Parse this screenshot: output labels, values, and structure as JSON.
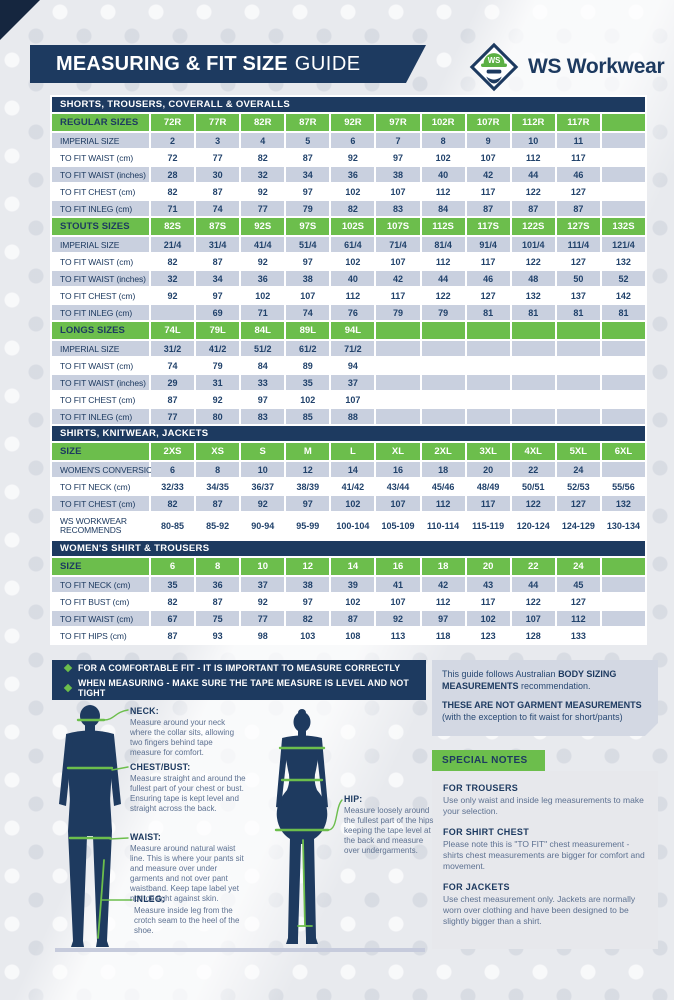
{
  "header": {
    "title_strong": "MEASURING & FIT SIZE",
    "title_light": "GUIDE",
    "brand": "WS Workwear",
    "logo_monogram": "WS"
  },
  "colors": {
    "navy": "#1d3a60",
    "green": "#6cbe4c",
    "row_shade": "#c9d0df",
    "info_bg": "#d3d8e3",
    "notes_bg": "#e7e8ec"
  },
  "size_tables": [
    {
      "section": "SHORTS, TROUSERS, COVERALL & OVERALLS",
      "blocks": [
        {
          "head": {
            "label": "REGULAR SIZES",
            "cols": [
              "72R",
              "77R",
              "82R",
              "87R",
              "92R",
              "97R",
              "102R",
              "107R",
              "112R",
              "117R",
              ""
            ]
          },
          "rows": [
            {
              "label": "IMPERIAL SIZE",
              "values": [
                "2",
                "3",
                "4",
                "5",
                "6",
                "7",
                "8",
                "9",
                "10",
                "11",
                ""
              ]
            },
            {
              "label": "TO FIT WAIST (cm)",
              "values": [
                "72",
                "77",
                "82",
                "87",
                "92",
                "97",
                "102",
                "107",
                "112",
                "117",
                ""
              ]
            },
            {
              "label": "TO FIT WAIST (inches)",
              "values": [
                "28",
                "30",
                "32",
                "34",
                "36",
                "38",
                "40",
                "42",
                "44",
                "46",
                ""
              ]
            },
            {
              "label": "TO FIT CHEST (cm)",
              "values": [
                "82",
                "87",
                "92",
                "97",
                "102",
                "107",
                "112",
                "117",
                "122",
                "127",
                ""
              ]
            },
            {
              "label": "TO FIT INLEG (cm)",
              "values": [
                "71",
                "74",
                "77",
                "79",
                "82",
                "83",
                "84",
                "87",
                "87",
                "87",
                ""
              ]
            }
          ]
        },
        {
          "head": {
            "label": "STOUTS SIZES",
            "cols": [
              "82S",
              "87S",
              "92S",
              "97S",
              "102S",
              "107S",
              "112S",
              "117S",
              "122S",
              "127S",
              "132S"
            ]
          },
          "rows": [
            {
              "label": "IMPERIAL SIZE",
              "values": [
                "21/4",
                "31/4",
                "41/4",
                "51/4",
                "61/4",
                "71/4",
                "81/4",
                "91/4",
                "101/4",
                "111/4",
                "121/4"
              ]
            },
            {
              "label": "TO FIT WAIST (cm)",
              "values": [
                "82",
                "87",
                "92",
                "97",
                "102",
                "107",
                "112",
                "117",
                "122",
                "127",
                "132"
              ]
            },
            {
              "label": "TO FIT WAIST (inches)",
              "values": [
                "32",
                "34",
                "36",
                "38",
                "40",
                "42",
                "44",
                "46",
                "48",
                "50",
                "52"
              ]
            },
            {
              "label": "TO FIT CHEST (cm)",
              "values": [
                "92",
                "97",
                "102",
                "107",
                "112",
                "117",
                "122",
                "127",
                "132",
                "137",
                "142"
              ]
            },
            {
              "label": "TO FIT INLEG (cm)",
              "values": [
                "",
                "69",
                "71",
                "74",
                "76",
                "79",
                "79",
                "81",
                "81",
                "81",
                "81"
              ]
            }
          ]
        },
        {
          "head": {
            "label": "LONGS SIZES",
            "cols": [
              "74L",
              "79L",
              "84L",
              "89L",
              "94L",
              "",
              "",
              "",
              "",
              "",
              ""
            ]
          },
          "rows": [
            {
              "label": "IMPERIAL SIZE",
              "values": [
                "31/2",
                "41/2",
                "51/2",
                "61/2",
                "71/2",
                "",
                "",
                "",
                "",
                "",
                ""
              ]
            },
            {
              "label": "TO FIT WAIST (cm)",
              "values": [
                "74",
                "79",
                "84",
                "89",
                "94",
                "",
                "",
                "",
                "",
                "",
                ""
              ]
            },
            {
              "label": "TO FIT WAIST (inches)",
              "values": [
                "29",
                "31",
                "33",
                "35",
                "37",
                "",
                "",
                "",
                "",
                "",
                ""
              ]
            },
            {
              "label": "TO FIT CHEST (cm)",
              "values": [
                "87",
                "92",
                "97",
                "102",
                "107",
                "",
                "",
                "",
                "",
                "",
                ""
              ]
            },
            {
              "label": "TO FIT INLEG (cm)",
              "values": [
                "77",
                "80",
                "83",
                "85",
                "88",
                "",
                "",
                "",
                "",
                "",
                ""
              ]
            }
          ]
        }
      ]
    },
    {
      "section": "SHIRTS, KNITWEAR, JACKETS",
      "blocks": [
        {
          "head": {
            "label": "SIZE",
            "cols": [
              "2XS",
              "XS",
              "S",
              "M",
              "L",
              "XL",
              "2XL",
              "3XL",
              "4XL",
              "5XL",
              "6XL"
            ]
          },
          "rows": [
            {
              "label": "WOMEN'S CONVERSION",
              "values": [
                "6",
                "8",
                "10",
                "12",
                "14",
                "16",
                "18",
                "20",
                "22",
                "24",
                ""
              ]
            },
            {
              "label": "TO FIT NECK (cm)",
              "values": [
                "32/33",
                "34/35",
                "36/37",
                "38/39",
                "41/42",
                "43/44",
                "45/46",
                "48/49",
                "50/51",
                "52/53",
                "55/56"
              ]
            },
            {
              "label": "TO FIT CHEST (cm)",
              "values": [
                "82",
                "87",
                "92",
                "97",
                "102",
                "107",
                "112",
                "117",
                "122",
                "127",
                "132"
              ]
            },
            {
              "label": "WS WORKWEAR RECOMMENDS",
              "tall": true,
              "values": [
                "80-85",
                "85-92",
                "90-94",
                "95-99",
                "100-104",
                "105-109",
                "110-114",
                "115-119",
                "120-124",
                "124-129",
                "130-134"
              ]
            }
          ]
        }
      ]
    },
    {
      "section": "WOMEN'S SHIRT & TROUSERS",
      "blocks": [
        {
          "head": {
            "label": "SIZE",
            "cols": [
              "6",
              "8",
              "10",
              "12",
              "14",
              "16",
              "18",
              "20",
              "22",
              "24",
              ""
            ]
          },
          "rows": [
            {
              "label": "TO FIT NECK (cm)",
              "values": [
                "35",
                "36",
                "37",
                "38",
                "39",
                "41",
                "42",
                "43",
                "44",
                "45",
                ""
              ]
            },
            {
              "label": "TO FIT BUST (cm)",
              "values": [
                "82",
                "87",
                "92",
                "97",
                "102",
                "107",
                "112",
                "117",
                "122",
                "127",
                ""
              ]
            },
            {
              "label": "TO FIT WAIST (cm)",
              "values": [
                "67",
                "75",
                "77",
                "82",
                "87",
                "92",
                "97",
                "102",
                "107",
                "112",
                ""
              ]
            },
            {
              "label": "TO FIT HIPS (cm)",
              "values": [
                "87",
                "93",
                "98",
                "103",
                "108",
                "113",
                "118",
                "123",
                "128",
                "133",
                ""
              ]
            }
          ]
        }
      ]
    }
  ],
  "fit_box": {
    "lines": [
      "FOR A COMFORTABLE FIT - IT IS IMPORTANT TO MEASURE CORRECTLY",
      "WHEN MEASURING - MAKE SURE THE TAPE MEASURE IS LEVEL AND NOT TIGHT"
    ]
  },
  "measure_guide": {
    "annotations": [
      {
        "label": "NECK:",
        "text": "Measure around your neck where the collar sits, allowing two fingers behind tape measure for comfort."
      },
      {
        "label": "CHEST/BUST:",
        "text": "Measure straight and around the fullest part of your chest or bust. Ensuring tape is kept level and straight across the back."
      },
      {
        "label": "WAIST:",
        "text": "Measure around natural waist line. This is where your pants sit and measure over under garments and not over pant waistband. Keep tape label yet not too tight against skin."
      },
      {
        "label": "INLEG:",
        "text": "Measure inside leg from the crotch seam to the heel of the shoe."
      },
      {
        "label": "HIP:",
        "text": "Measure loosely around the fullest part of the hips keeping the tape level at the back and measure over undergarments."
      }
    ]
  },
  "info_box": {
    "para1": [
      {
        "t": "This guide follows Australian ",
        "b": false
      },
      {
        "t": "BODY SIZING MEASUREMENTS",
        "b": true
      },
      {
        "t": " recommendation.",
        "b": false
      }
    ],
    "para2": [
      {
        "t": "THESE ARE NOT GARMENT MEASUREMENTS",
        "b": true
      },
      {
        "t": " (with the exception to fit waist for short/pants)",
        "b": false
      }
    ]
  },
  "special_notes": {
    "title": "SPECIAL NOTES",
    "notes": [
      {
        "heading": "FOR TROUSERS",
        "text": "Use only waist and inside leg measurements to make your selection."
      },
      {
        "heading": "FOR SHIRT CHEST",
        "text": "Please note this is \"TO FIT\" chest measurement - shirts chest measurements are bigger for comfort and movement."
      },
      {
        "heading": "FOR JACKETS",
        "text": "Use chest measurement only. Jackets are normally worn over clothing and have been designed to be slightly bigger than a shirt."
      }
    ]
  }
}
